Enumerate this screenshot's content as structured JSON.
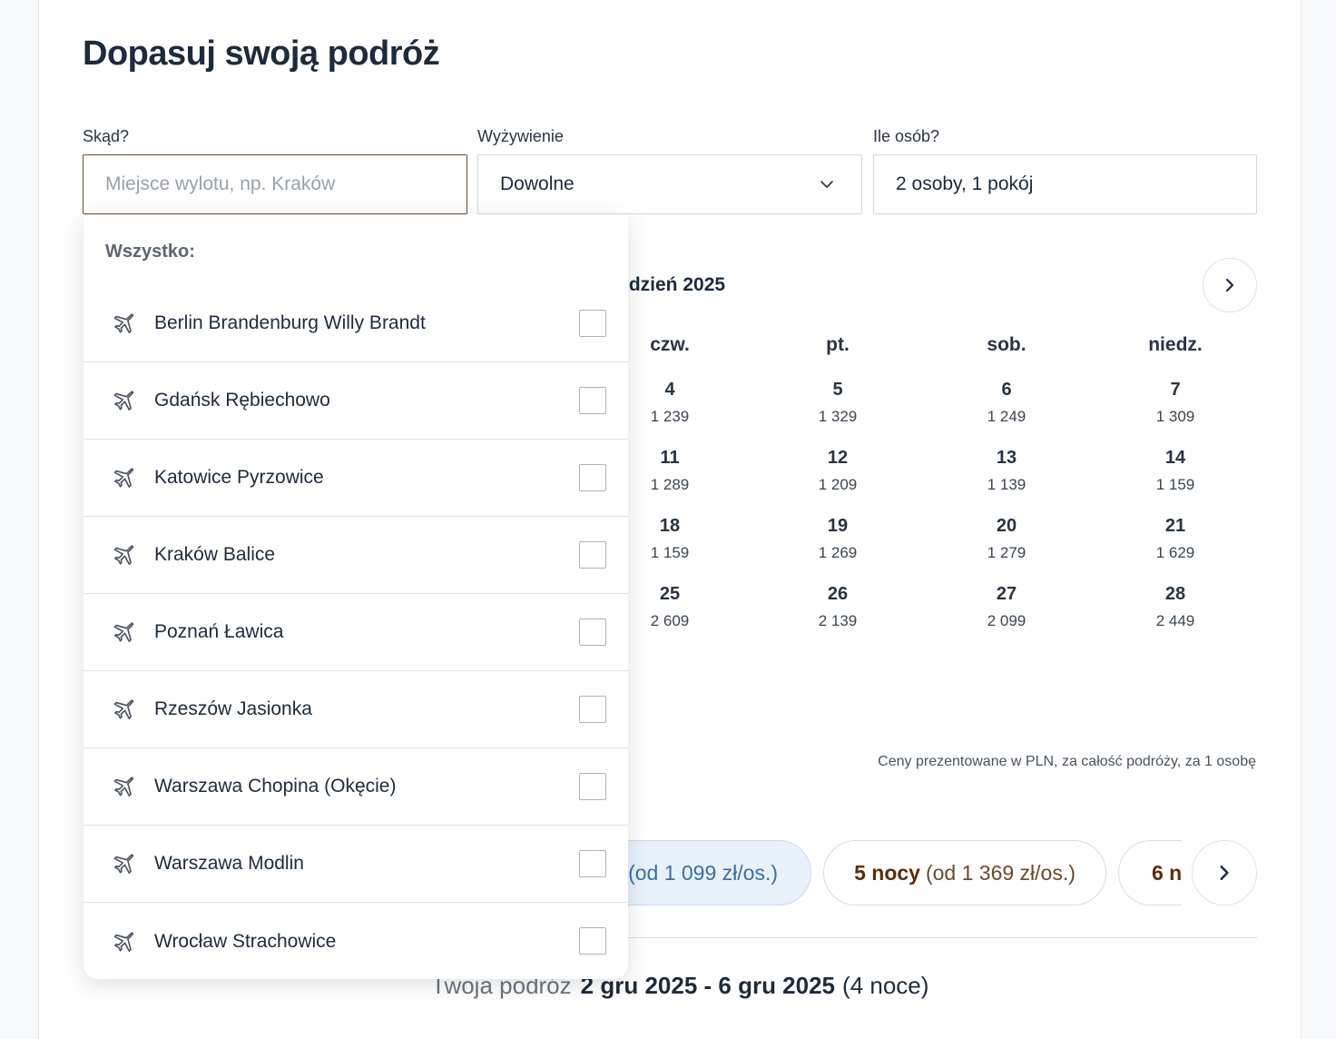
{
  "page": {
    "title": "Dopasuj swoją podróż"
  },
  "fields": {
    "from": {
      "label": "Skąd?",
      "placeholder": "Miejsce wylotu, np. Kraków",
      "value": ""
    },
    "board": {
      "label": "Wyżywienie",
      "value": "Dowolne"
    },
    "people": {
      "label": "Ile osób?",
      "value": "2 osoby, 1 pokój"
    }
  },
  "dropdown": {
    "header": "Wszystko:",
    "items": [
      {
        "name": "Berlin Brandenburg Willy Brandt",
        "checked": false
      },
      {
        "name": "Gdańsk Rębiechowo",
        "checked": false
      },
      {
        "name": "Katowice Pyrzowice",
        "checked": false
      },
      {
        "name": "Kraków Balice",
        "checked": false
      },
      {
        "name": "Poznań Ławica",
        "checked": false
      },
      {
        "name": "Rzeszów Jasionka",
        "checked": false
      },
      {
        "name": "Warszawa Chopina (Okęcie)",
        "checked": false
      },
      {
        "name": "Warszawa Modlin",
        "checked": false
      },
      {
        "name": "Wrocław Strachowice",
        "checked": false
      }
    ]
  },
  "calendar": {
    "month": "udzień 2025",
    "weekdays": [
      "czw.",
      "pt.",
      "sob.",
      "niedz."
    ],
    "weeks": [
      [
        {
          "day": "4",
          "price": "1 239"
        },
        {
          "day": "5",
          "price": "1 329"
        },
        {
          "day": "6",
          "price": "1 249"
        },
        {
          "day": "7",
          "price": "1 309"
        }
      ],
      [
        {
          "day": "11",
          "price": "1 289"
        },
        {
          "day": "12",
          "price": "1 209"
        },
        {
          "day": "13",
          "price": "1 139"
        },
        {
          "day": "14",
          "price": "1 159"
        }
      ],
      [
        {
          "day": "18",
          "price": "1 159"
        },
        {
          "day": "19",
          "price": "1 269"
        },
        {
          "day": "20",
          "price": "1 279"
        },
        {
          "day": "21",
          "price": "1 629"
        }
      ],
      [
        {
          "day": "25",
          "price": "2 609"
        },
        {
          "day": "26",
          "price": "2 139"
        },
        {
          "day": "27",
          "price": "2 099"
        },
        {
          "day": "28",
          "price": "2 449"
        }
      ]
    ],
    "price_note": "Ceny prezentowane w PLN, za całość podróży, za 1 osobę"
  },
  "nights": {
    "options": [
      {
        "nights": "",
        "from": "(od 1 099 zł/os.)",
        "selected": true
      },
      {
        "nights": "5 nocy",
        "from": "(od 1 369 zł/os.)",
        "selected": false
      },
      {
        "nights": "6 n",
        "from": "",
        "selected": false
      }
    ]
  },
  "summary": {
    "label": "Twoja podróż",
    "dates": "2 gru 2025 - 6 gru 2025",
    "nights": "(4 noce)"
  },
  "icons": {
    "plane": "plane-icon",
    "chevron_down": "chevron-down-icon",
    "chevron_right": "chevron-right-icon"
  },
  "colors": {
    "accent_brown": "#5a2e0b",
    "selected_pill_bg": "#e9f1fb",
    "active_border": "#6b4a2a"
  }
}
